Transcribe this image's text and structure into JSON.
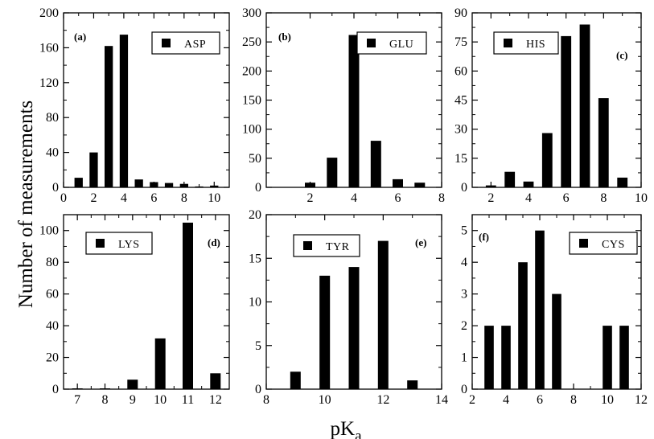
{
  "figure": {
    "ylabel": "Number of measurements",
    "xlabel_base": "pK",
    "xlabel_sub": "a",
    "bar_color": "#000000"
  },
  "chart_data": [
    {
      "type": "bar",
      "tag": "(a)",
      "legend": "ASP",
      "xlim": [
        0,
        11
      ],
      "ylim": [
        0,
        200
      ],
      "xticks": [
        0,
        2,
        4,
        6,
        8,
        10
      ],
      "yticks": [
        0,
        40,
        80,
        120,
        160,
        200
      ],
      "x": [
        1,
        2,
        3,
        4,
        5,
        6,
        7,
        8,
        9,
        10
      ],
      "values": [
        11,
        40,
        162,
        175,
        9,
        6,
        5,
        4,
        1,
        2
      ]
    },
    {
      "type": "bar",
      "tag": "(b)",
      "legend": "GLU",
      "xlim": [
        0,
        8
      ],
      "ylim": [
        0,
        300
      ],
      "xticks": [
        2,
        4,
        6,
        8
      ],
      "yticks": [
        0,
        50,
        100,
        150,
        200,
        250,
        300
      ],
      "x": [
        2,
        3,
        4,
        5,
        6,
        7
      ],
      "values": [
        8,
        51,
        262,
        80,
        14,
        8
      ]
    },
    {
      "type": "bar",
      "tag": "(c)",
      "legend": "HIS",
      "xlim": [
        1,
        10
      ],
      "ylim": [
        0,
        90
      ],
      "xticks": [
        2,
        4,
        6,
        8,
        10
      ],
      "yticks": [
        0,
        15,
        30,
        45,
        60,
        75,
        90
      ],
      "x": [
        2,
        3,
        4,
        5,
        6,
        7,
        8,
        9
      ],
      "values": [
        1,
        8,
        3,
        28,
        78,
        84,
        46,
        5
      ]
    },
    {
      "type": "bar",
      "tag": "(d)",
      "legend": "LYS",
      "xlim": [
        6.5,
        12.5
      ],
      "ylim": [
        0,
        110
      ],
      "xticks": [
        7,
        8,
        9,
        10,
        11,
        12
      ],
      "yticks": [
        0,
        20,
        40,
        60,
        80,
        100
      ],
      "x": [
        7,
        8,
        9,
        10,
        11,
        12
      ],
      "values": [
        0.5,
        0.5,
        6,
        32,
        105,
        10
      ]
    },
    {
      "type": "bar",
      "tag": "(e)",
      "legend": "TYR",
      "xlim": [
        8,
        14
      ],
      "ylim": [
        0,
        20
      ],
      "xticks": [
        8,
        10,
        12,
        14
      ],
      "yticks": [
        0,
        5,
        10,
        15,
        20
      ],
      "x": [
        9,
        10,
        11,
        12,
        13
      ],
      "values": [
        2,
        13,
        14,
        17,
        1
      ]
    },
    {
      "type": "bar",
      "tag": "(f)",
      "legend": "CYS",
      "xlim": [
        2,
        12
      ],
      "ylim": [
        0,
        5.5
      ],
      "xticks": [
        2,
        4,
        6,
        8,
        10,
        12
      ],
      "yticks": [
        0,
        1,
        2,
        3,
        4,
        5
      ],
      "x": [
        3,
        4,
        5,
        6,
        7,
        10,
        11
      ],
      "values": [
        2,
        2,
        4,
        5,
        3,
        2,
        2
      ]
    }
  ]
}
